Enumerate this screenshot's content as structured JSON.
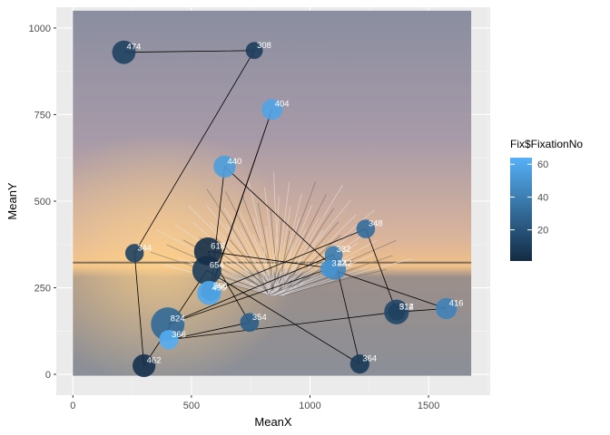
{
  "chart_data": {
    "type": "scatter",
    "title": "",
    "xlabel": "MeanX",
    "ylabel": "MeanY",
    "xlim": [
      -70,
      1760
    ],
    "ylim": [
      -60,
      1060
    ],
    "x_ticks": [
      0,
      500,
      1000,
      1500
    ],
    "y_ticks": [
      0,
      250,
      500,
      750,
      1000
    ],
    "x_tick_labels": [
      "0",
      "500",
      "1000",
      "1500"
    ],
    "y_tick_labels": [
      "0",
      "250",
      "500",
      "750",
      "1000"
    ],
    "grid": true,
    "legend": {
      "title": "Fix$FixationNo",
      "position": "right",
      "breaks": [
        20,
        40,
        60
      ],
      "break_labels": [
        "20",
        "40",
        "60"
      ],
      "range": [
        1,
        64
      ],
      "low_color": "#132B43",
      "high_color": "#56B1F7"
    },
    "colors": {
      "panel_background": "#EBEBEB",
      "grid_major": "#FFFFFF",
      "path": "#000000"
    },
    "background_photo": {
      "x_range": [
        0,
        1680
      ],
      "y_range": [
        -4,
        1050
      ]
    },
    "points": [
      {
        "x": 215,
        "y": 930,
        "fixation_no": 12,
        "duration": 474,
        "label": "474"
      },
      {
        "x": 765,
        "y": 935,
        "fixation_no": 10,
        "duration": 308,
        "label": "308"
      },
      {
        "x": 840,
        "y": 765,
        "fixation_no": 58,
        "duration": 404,
        "label": "404"
      },
      {
        "x": 640,
        "y": 600,
        "fixation_no": 55,
        "duration": 440,
        "label": "440"
      },
      {
        "x": 260,
        "y": 350,
        "fixation_no": 12,
        "duration": 344,
        "label": "344"
      },
      {
        "x": 570,
        "y": 355,
        "fixation_no": 3,
        "duration": 618,
        "label": "618"
      },
      {
        "x": 565,
        "y": 300,
        "fixation_no": 9,
        "duration": 654,
        "label": "654"
      },
      {
        "x": 580,
        "y": 240,
        "fixation_no": 56,
        "duration": 366,
        "label": "366"
      },
      {
        "x": 575,
        "y": 235,
        "fixation_no": 60,
        "duration": 496,
        "label": "496"
      },
      {
        "x": 400,
        "y": 145,
        "fixation_no": 30,
        "duration": 824,
        "label": "824"
      },
      {
        "x": 405,
        "y": 100,
        "fixation_no": 62,
        "duration": 366,
        "label": "366"
      },
      {
        "x": 300,
        "y": 25,
        "fixation_no": 4,
        "duration": 462,
        "label": "462"
      },
      {
        "x": 745,
        "y": 150,
        "fixation_no": 25,
        "duration": 354,
        "label": "354"
      },
      {
        "x": 1210,
        "y": 30,
        "fixation_no": 8,
        "duration": 364,
        "label": "364"
      },
      {
        "x": 1100,
        "y": 345,
        "fixation_no": 40,
        "duration": 332,
        "label": "332"
      },
      {
        "x": 1235,
        "y": 420,
        "fixation_no": 32,
        "duration": 348,
        "label": "348"
      },
      {
        "x": 1080,
        "y": 305,
        "fixation_no": 50,
        "duration": 312,
        "label": "312"
      },
      {
        "x": 1105,
        "y": 305,
        "fixation_no": 44,
        "duration": 442,
        "label": "442"
      },
      {
        "x": 1365,
        "y": 180,
        "fixation_no": 14,
        "duration": 514,
        "label": "514"
      },
      {
        "x": 1365,
        "y": 180,
        "fixation_no": 12,
        "duration": 312,
        "label": "312"
      },
      {
        "x": 1575,
        "y": 190,
        "fixation_no": 42,
        "duration": 416,
        "label": "416"
      }
    ],
    "path_order": [
      0,
      1,
      4,
      11,
      6,
      13,
      14,
      9,
      16,
      20,
      18,
      10,
      12,
      5,
      17,
      3,
      7,
      2,
      8,
      15,
      19
    ]
  }
}
